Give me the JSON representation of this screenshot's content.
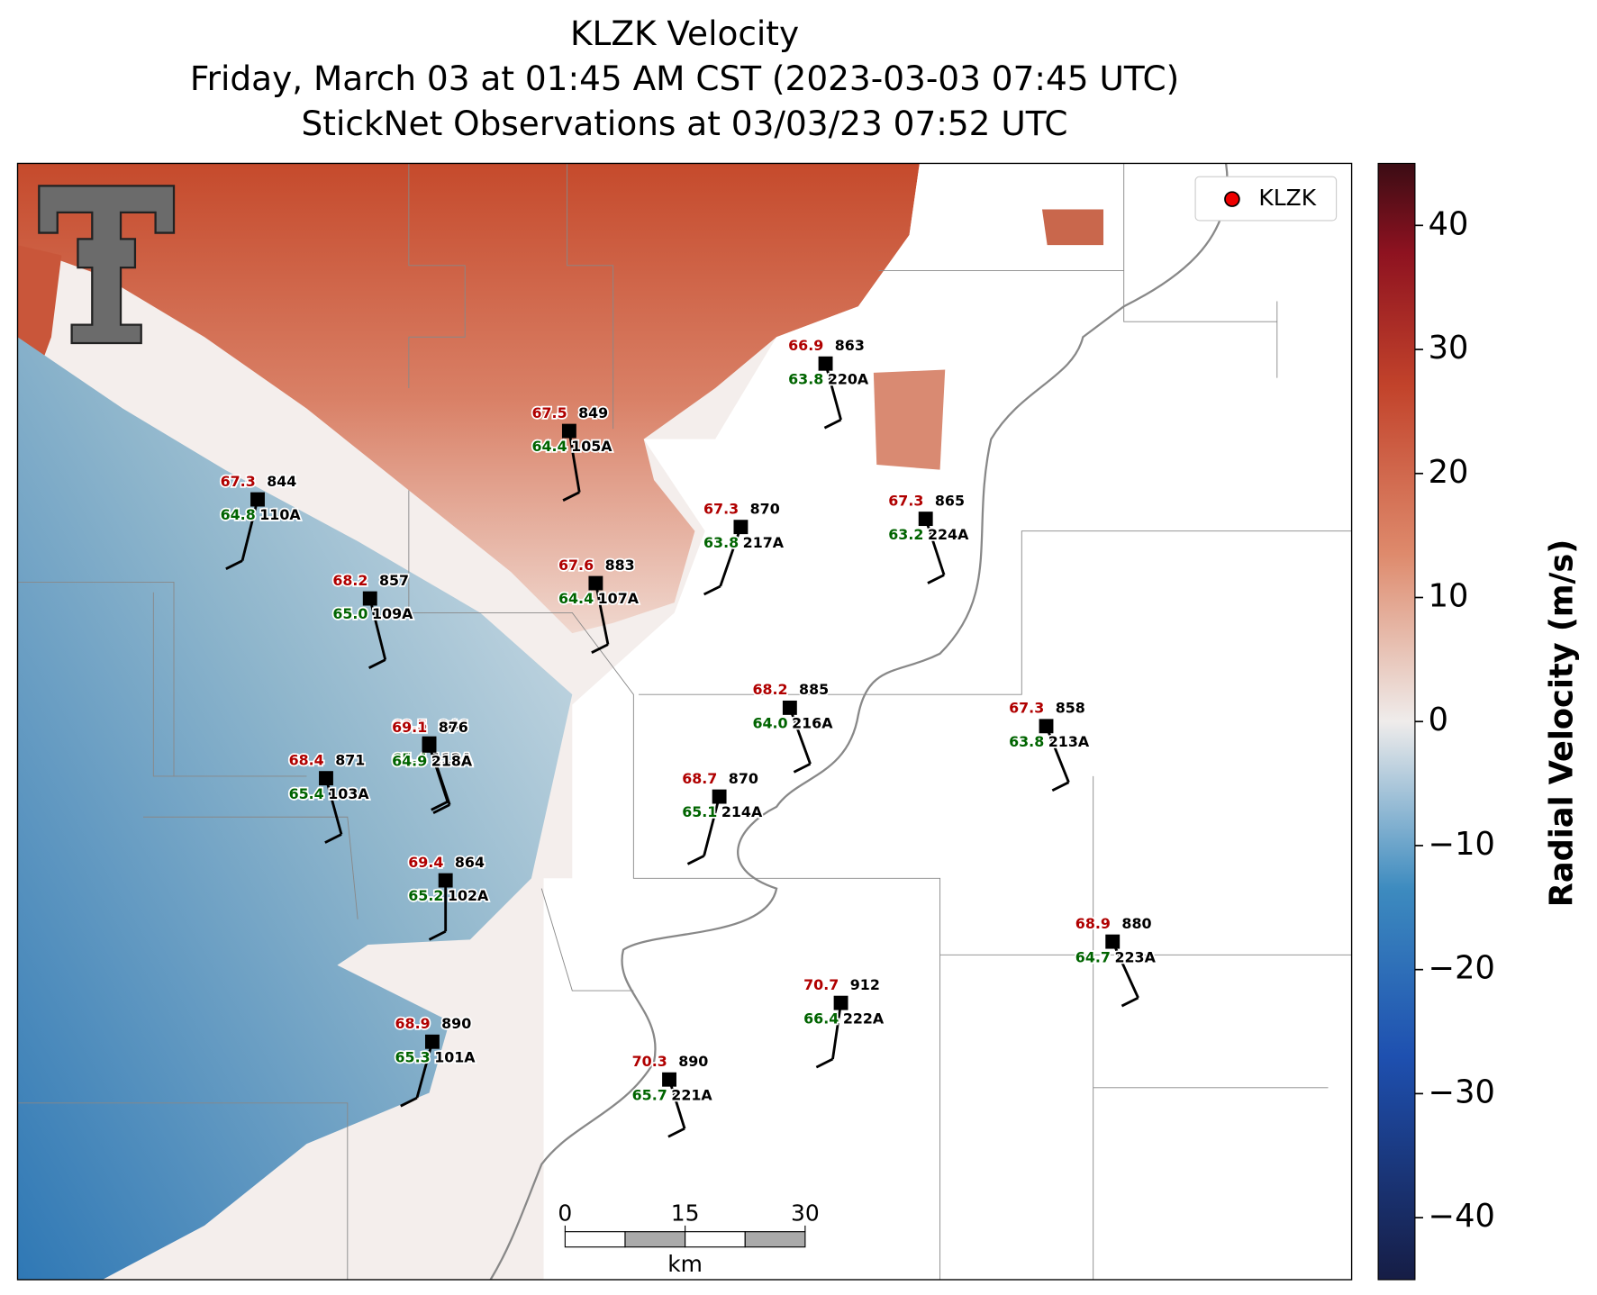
{
  "title": {
    "lines": [
      "KLZK Velocity",
      "Friday, March 03 at 01:45 AM CST (2023-03-03 07:45 UTC)",
      "StickNet Observations at 03/03/23 07:52 UTC"
    ]
  },
  "legend": {
    "label": "KLZK"
  },
  "stations": [
    {
      "number": 844,
      "id": "110A",
      "temp": "67.3",
      "dewpoint": "64.8"
    },
    {
      "number": 849,
      "id": "105A",
      "temp": "67.5",
      "dewpoint": "64.4"
    },
    {
      "number": 863,
      "id": "220A",
      "temp": "66.9",
      "dewpoint": "63.8"
    },
    {
      "number": 857,
      "id": "109A",
      "temp": "68.2",
      "dewpoint": "65.0"
    },
    {
      "number": 870,
      "id": "217A",
      "temp": "67.3",
      "dewpoint": "63.8"
    },
    {
      "number": 865,
      "id": "224A",
      "temp": "67.3",
      "dewpoint": "63.2"
    },
    {
      "number": 883,
      "id": "107A",
      "temp": "67.6",
      "dewpoint": "64.4"
    },
    {
      "number": 885,
      "id": "216A",
      "temp": "68.2",
      "dewpoint": "64.0"
    },
    {
      "number": 858,
      "id": "213A",
      "temp": "67.3",
      "dewpoint": "63.8"
    },
    {
      "number": 846,
      "id": "112A",
      "temp": "68.5",
      "dewpoint": "65.4"
    },
    {
      "number": 876,
      "id": "218A",
      "temp": "69.1",
      "dewpoint": "64.9"
    },
    {
      "number": 871,
      "id": "103A",
      "temp": "68.4",
      "dewpoint": "65.4"
    },
    {
      "number": 870,
      "id": "214A",
      "temp": "68.7",
      "dewpoint": "65.1"
    },
    {
      "number": 864,
      "id": "102A",
      "temp": "69.4",
      "dewpoint": "65.2"
    },
    {
      "number": 880,
      "id": "223A",
      "temp": "68.9",
      "dewpoint": "64.7"
    },
    {
      "number": 912,
      "id": "222A",
      "temp": "70.7",
      "dewpoint": "66.4"
    },
    {
      "number": 890,
      "id": "101A",
      "temp": "68.9",
      "dewpoint": "65.3"
    },
    {
      "number": 890,
      "id": "221A",
      "temp": "70.3",
      "dewpoint": "65.7"
    }
  ],
  "colorbar": {
    "label": "Radial Velocity (m/s)",
    "clim": [
      -45,
      45
    ],
    "ticks": [
      {
        "value": -40,
        "label": "−40"
      },
      {
        "value": -30,
        "label": "−30"
      },
      {
        "value": -20,
        "label": "−20"
      },
      {
        "value": -10,
        "label": "−10"
      },
      0,
      10,
      20,
      30,
      40
    ]
  },
  "scale_bar": {
    "ticks": [
      0,
      15,
      30
    ],
    "unit": "km"
  }
}
